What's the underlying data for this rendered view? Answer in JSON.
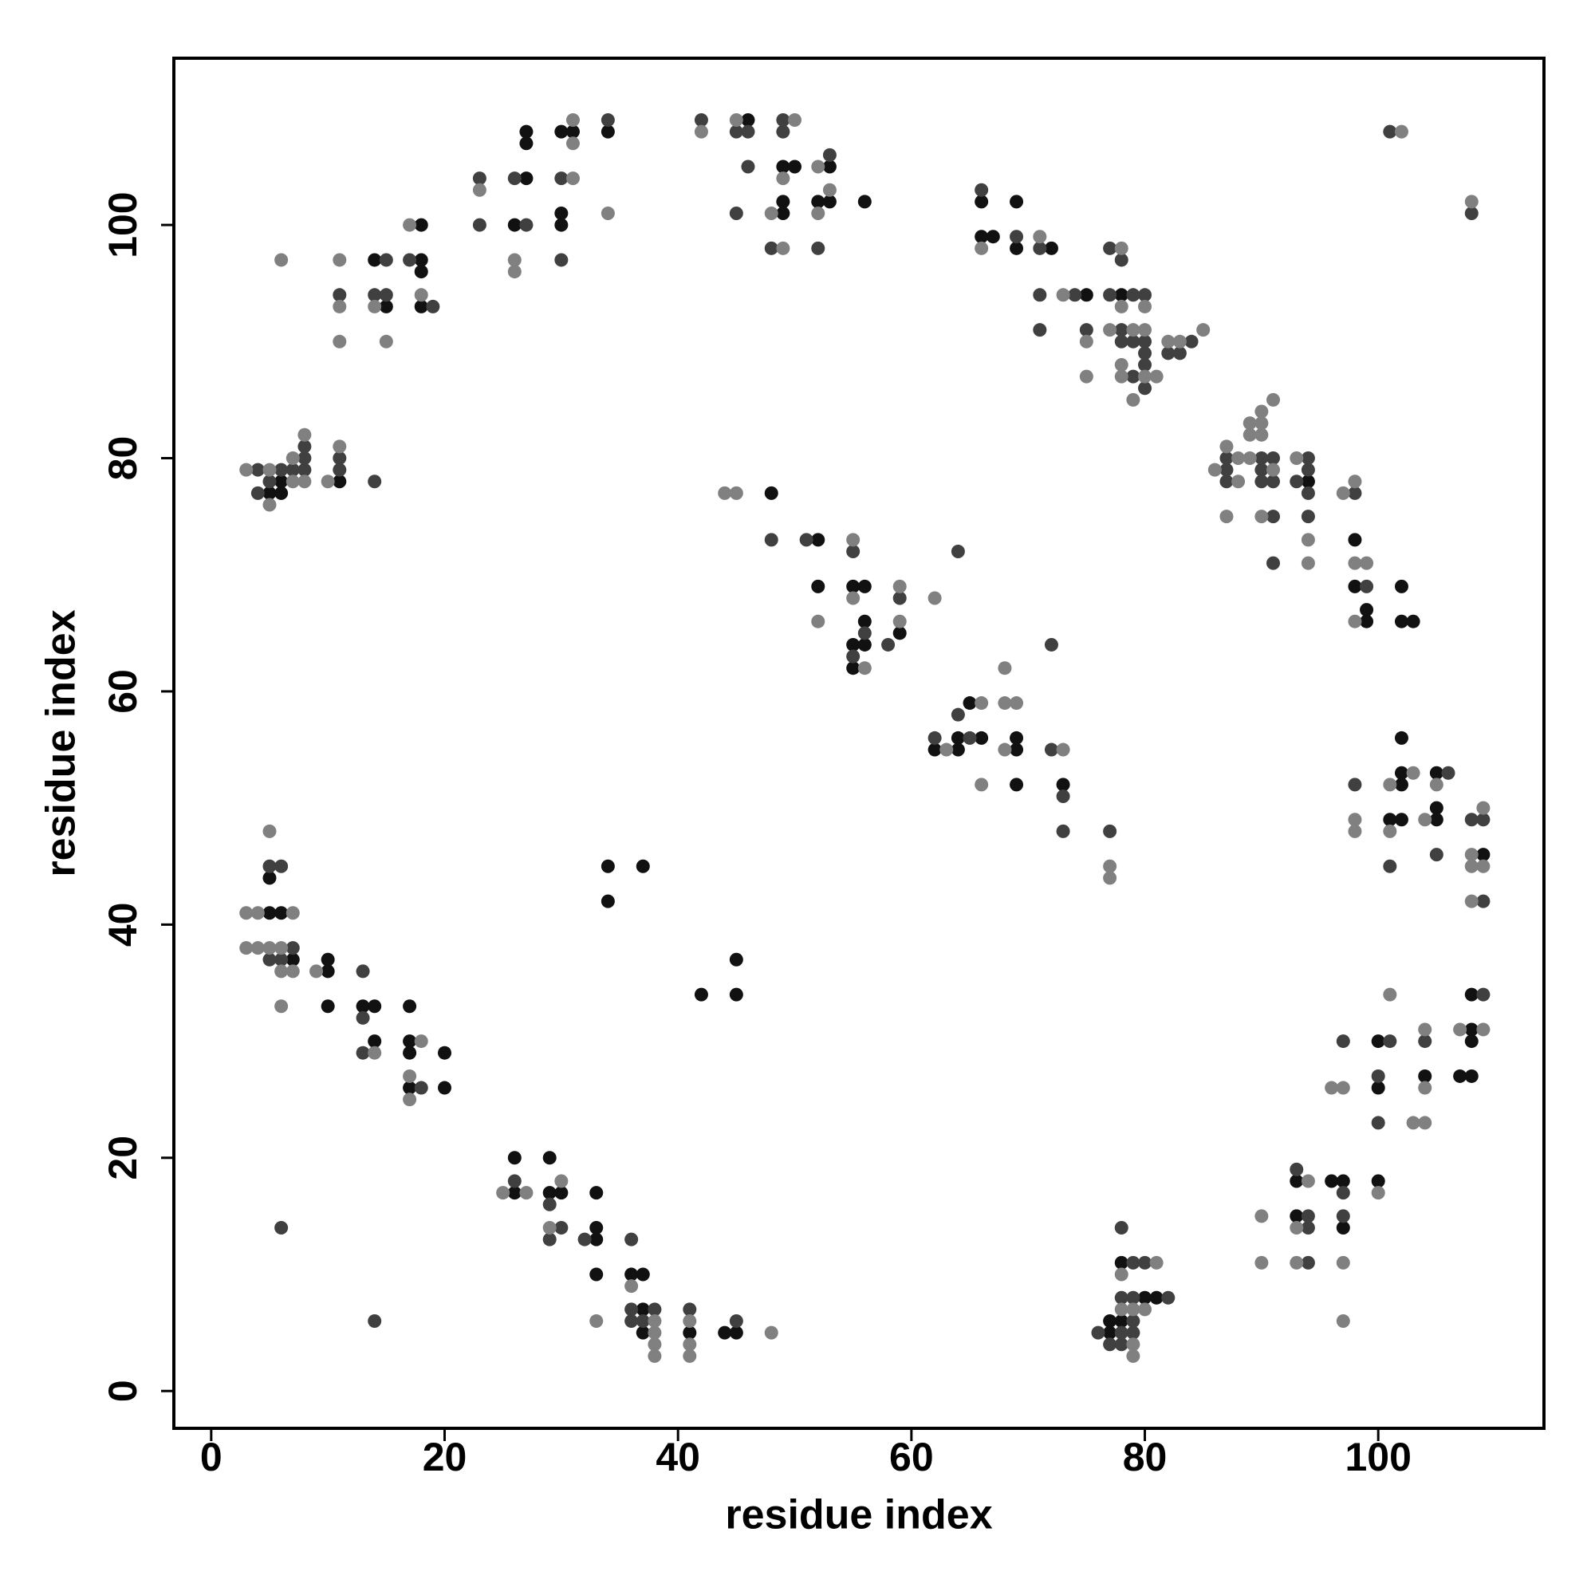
{
  "chart_data": {
    "type": "scatter",
    "xlabel": "residue index",
    "ylabel": "residue index",
    "xlim": [
      -3.2,
      114.2
    ],
    "ylim": [
      -3.2,
      114.3
    ],
    "xticks": [
      0,
      20,
      40,
      60,
      80,
      100
    ],
    "yticks": [
      0,
      20,
      40,
      60,
      80,
      100
    ],
    "series": [
      {
        "color": "#111111",
        "x": [
          5,
          6,
          6,
          11,
          14,
          15,
          18,
          18,
          18,
          18,
          26,
          27,
          27,
          27,
          30,
          30,
          30,
          31,
          34,
          46,
          49,
          49,
          49,
          50,
          52,
          53,
          53,
          56,
          66,
          66,
          67,
          69,
          69,
          72,
          75,
          78,
          94,
          98,
          98,
          99,
          99,
          102,
          102,
          103,
          48,
          52,
          52,
          55,
          55,
          55,
          56,
          56,
          56,
          59,
          62,
          64,
          64,
          65,
          66,
          69,
          69,
          69,
          73,
          101,
          102,
          102,
          102,
          102,
          105,
          105,
          105,
          109,
          108,
          108,
          108,
          107,
          108,
          104,
          100,
          100,
          100,
          93,
          96,
          97,
          97,
          93,
          77,
          77,
          78,
          78,
          80,
          81,
          26,
          26,
          29,
          29,
          30,
          33,
          33,
          33,
          33,
          36,
          37,
          37,
          37,
          41,
          44,
          45,
          34,
          37,
          34,
          42,
          45,
          45,
          5,
          5,
          6,
          7,
          10,
          10,
          10,
          13,
          14,
          14,
          17,
          17,
          17,
          17,
          20,
          20
        ],
        "y": [
          77,
          78,
          77,
          78,
          97,
          93,
          100,
          97,
          96,
          93,
          100,
          108,
          107,
          104,
          108,
          101,
          100,
          108,
          108,
          109,
          105,
          102,
          101,
          105,
          102,
          105,
          102,
          102,
          102,
          99,
          99,
          102,
          98,
          98,
          94,
          94,
          78,
          73,
          69,
          67,
          66,
          69,
          66,
          66,
          77,
          73,
          69,
          69,
          64,
          62,
          69,
          66,
          64,
          65,
          55,
          56,
          55,
          59,
          56,
          56,
          55,
          52,
          52,
          49,
          56,
          53,
          52,
          49,
          53,
          50,
          49,
          46,
          34,
          31,
          30,
          27,
          27,
          27,
          30,
          26,
          18,
          18,
          18,
          18,
          14,
          15,
          6,
          5,
          11,
          6,
          8,
          8,
          20,
          17,
          20,
          17,
          17,
          17,
          14,
          13,
          10,
          10,
          10,
          7,
          5,
          5,
          5,
          5,
          45,
          45,
          42,
          34,
          37,
          34,
          44,
          41,
          41,
          37,
          37,
          36,
          33,
          33,
          33,
          30,
          33,
          30,
          29,
          26,
          29,
          26
        ]
      },
      {
        "color": "#404040",
        "x": [
          4,
          4,
          5,
          6,
          7,
          8,
          8,
          8,
          11,
          11,
          14,
          11,
          14,
          15,
          15,
          17,
          19,
          23,
          23,
          26,
          27,
          30,
          30,
          34,
          42,
          45,
          45,
          46,
          46,
          48,
          49,
          49,
          52,
          53,
          66,
          69,
          71,
          71,
          71,
          74,
          75,
          77,
          77,
          78,
          78,
          78,
          79,
          79,
          79,
          80,
          80,
          80,
          80,
          80,
          82,
          83,
          84,
          87,
          87,
          87,
          90,
          90,
          90,
          91,
          91,
          91,
          91,
          93,
          94,
          94,
          94,
          94,
          98,
          99,
          108,
          101,
          48,
          51,
          55,
          55,
          56,
          58,
          59,
          64,
          62,
          64,
          65,
          72,
          72,
          73,
          73,
          77,
          98,
          101,
          105,
          106,
          108,
          109,
          109,
          109,
          104,
          101,
          100,
          100,
          97,
          93,
          97,
          97,
          94,
          94,
          94,
          76,
          77,
          78,
          78,
          78,
          78,
          79,
          79,
          79,
          79,
          80,
          82,
          26,
          29,
          29,
          30,
          32,
          36,
          36,
          36,
          37,
          38,
          41,
          45,
          5,
          6,
          5,
          6,
          7,
          13,
          13,
          13,
          18,
          6,
          14
        ],
        "y": [
          79,
          77,
          78,
          79,
          79,
          81,
          80,
          79,
          80,
          79,
          78,
          94,
          94,
          97,
          94,
          97,
          93,
          104,
          100,
          104,
          100,
          104,
          97,
          109,
          109,
          108,
          101,
          108,
          105,
          98,
          109,
          108,
          98,
          106,
          103,
          99,
          98,
          94,
          91,
          94,
          91,
          98,
          94,
          97,
          91,
          90,
          94,
          90,
          87,
          94,
          90,
          89,
          88,
          86,
          89,
          89,
          90,
          80,
          79,
          78,
          80,
          79,
          78,
          80,
          78,
          75,
          71,
          78,
          80,
          79,
          77,
          75,
          77,
          69,
          101,
          108,
          73,
          73,
          72,
          63,
          65,
          64,
          68,
          72,
          56,
          58,
          56,
          64,
          55,
          51,
          48,
          48,
          52,
          45,
          46,
          53,
          49,
          49,
          42,
          34,
          30,
          30,
          27,
          23,
          30,
          19,
          17,
          15,
          15,
          14,
          11,
          5,
          4,
          14,
          8,
          5,
          4,
          11,
          8,
          6,
          5,
          11,
          8,
          18,
          16,
          13,
          14,
          13,
          13,
          7,
          6,
          6,
          7,
          7,
          6,
          45,
          45,
          37,
          37,
          38,
          36,
          32,
          29,
          26,
          14,
          6
        ]
      },
      {
        "color": "#808080",
        "x": [
          3,
          5,
          5,
          7,
          7,
          8,
          8,
          10,
          11,
          6,
          11,
          11,
          11,
          14,
          15,
          17,
          18,
          23,
          26,
          26,
          31,
          31,
          31,
          34,
          42,
          45,
          48,
          49,
          49,
          50,
          52,
          52,
          53,
          56,
          66,
          71,
          73,
          75,
          75,
          77,
          78,
          78,
          78,
          78,
          79,
          79,
          80,
          80,
          80,
          81,
          82,
          83,
          85,
          86,
          87,
          87,
          88,
          88,
          89,
          89,
          89,
          90,
          90,
          90,
          90,
          91,
          91,
          93,
          94,
          94,
          97,
          98,
          98,
          98,
          99,
          102,
          108,
          44,
          45,
          52,
          55,
          55,
          59,
          59,
          62,
          63,
          66,
          66,
          68,
          68,
          68,
          69,
          73,
          77,
          77,
          98,
          98,
          101,
          101,
          103,
          104,
          105,
          108,
          108,
          108,
          109,
          109,
          107,
          109,
          104,
          104,
          104,
          103,
          101,
          100,
          96,
          97,
          94,
          97,
          97,
          93,
          90,
          90,
          93,
          78,
          78,
          79,
          79,
          79,
          80,
          81,
          25,
          27,
          29,
          30,
          33,
          36,
          38,
          38,
          38,
          38,
          41,
          41,
          41,
          48,
          3,
          4,
          5,
          7,
          3,
          4,
          5,
          6,
          6,
          6,
          7,
          9,
          14,
          17,
          17,
          18
        ],
        "y": [
          79,
          79,
          76,
          80,
          78,
          82,
          78,
          78,
          81,
          97,
          97,
          93,
          90,
          93,
          90,
          100,
          94,
          103,
          97,
          96,
          109,
          107,
          104,
          101,
          108,
          109,
          101,
          104,
          98,
          109,
          105,
          101,
          103,
          62,
          98,
          99,
          94,
          90,
          87,
          91,
          98,
          93,
          88,
          87,
          91,
          85,
          93,
          91,
          87,
          87,
          90,
          90,
          91,
          79,
          81,
          75,
          80,
          78,
          83,
          82,
          80,
          84,
          83,
          82,
          75,
          85,
          79,
          80,
          73,
          71,
          77,
          78,
          71,
          66,
          71,
          108,
          102,
          77,
          77,
          66,
          73,
          68,
          69,
          66,
          68,
          55,
          59,
          52,
          62,
          59,
          55,
          59,
          55,
          45,
          44,
          49,
          48,
          52,
          48,
          53,
          49,
          52,
          46,
          45,
          42,
          50,
          45,
          31,
          31,
          31,
          26,
          23,
          23,
          34,
          17,
          26,
          26,
          18,
          11,
          6,
          14,
          15,
          11,
          11,
          10,
          7,
          7,
          4,
          3,
          7,
          11,
          17,
          17,
          14,
          18,
          6,
          9,
          6,
          5,
          4,
          3,
          6,
          4,
          3,
          5,
          41,
          41,
          48,
          41,
          38,
          38,
          38,
          38,
          36,
          33,
          36,
          36,
          29,
          27,
          25,
          30
        ]
      }
    ]
  }
}
